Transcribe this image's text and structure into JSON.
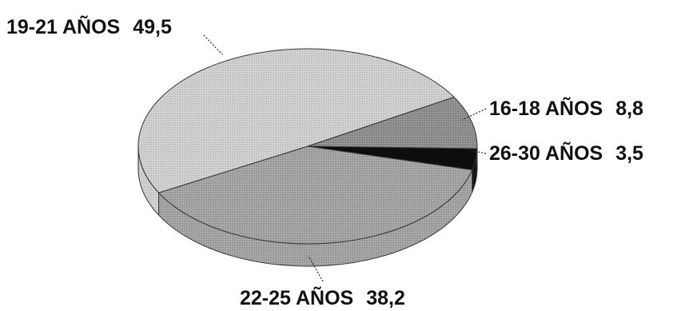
{
  "chart_data": {
    "type": "pie",
    "title": "",
    "style": "3d",
    "slices": [
      {
        "label": "19-21 AÑOS",
        "value": 49.5,
        "value_text": "49,5",
        "color": "#d2d2d2"
      },
      {
        "label": "16-18 AÑOS",
        "value": 8.8,
        "value_text": "8,8",
        "color": "#8f8f8f"
      },
      {
        "label": "26-30 AÑOS",
        "value": 3.5,
        "value_text": "3,5",
        "color": "#0d0d0d"
      },
      {
        "label": "22-25 AÑOS",
        "value": 38.2,
        "value_text": "38,2",
        "color": "#a4a4a4"
      }
    ],
    "legend": "none"
  }
}
